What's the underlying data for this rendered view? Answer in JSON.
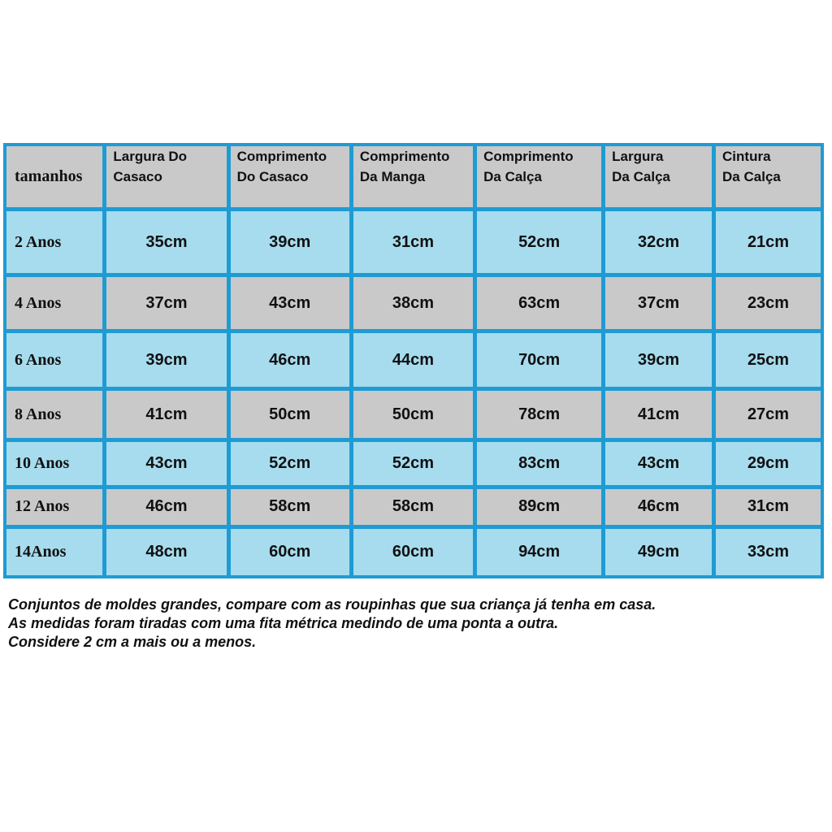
{
  "table": {
    "header": [
      [
        "tamanhos"
      ],
      [
        "Largura Do",
        "Casaco"
      ],
      [
        "Comprimento",
        "Do Casaco"
      ],
      [
        "Comprimento",
        "Da Manga"
      ],
      [
        "Comprimento",
        "Da Calça"
      ],
      [
        "Largura",
        "Da Calça"
      ],
      [
        "Cintura",
        "Da Calça"
      ]
    ],
    "rows": [
      [
        "2 Anos",
        "35cm",
        "39cm",
        "31cm",
        "52cm",
        "32cm",
        "21cm"
      ],
      [
        "4 Anos",
        "37cm",
        "43cm",
        "38cm",
        "63cm",
        "37cm",
        "23cm"
      ],
      [
        "6 Anos",
        "39cm",
        "46cm",
        "44cm",
        "70cm",
        "39cm",
        "25cm"
      ],
      [
        "8 Anos",
        "41cm",
        "50cm",
        "50cm",
        "78cm",
        "41cm",
        "27cm"
      ],
      [
        "10 Anos",
        "43cm",
        "52cm",
        "52cm",
        "83cm",
        "43cm",
        "29cm"
      ],
      [
        "12 Anos",
        "46cm",
        "58cm",
        "58cm",
        "89cm",
        "46cm",
        "31cm"
      ],
      [
        "14Anos",
        "48cm",
        "60cm",
        "60cm",
        "94cm",
        "49cm",
        "33cm"
      ]
    ]
  },
  "notes": [
    "Conjuntos de moldes grandes, compare com as roupinhas que sua criança já tenha em casa.",
    "As medidas foram tiradas com uma fita métrica medindo de uma ponta a outra.",
    "Considere 2 cm a mais ou a menos."
  ]
}
